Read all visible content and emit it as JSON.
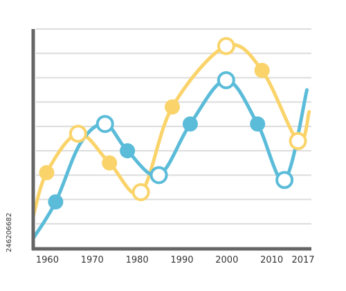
{
  "chart_data": {
    "type": "line",
    "title": "",
    "xlabel": "",
    "ylabel": "",
    "x": [
      1960,
      1970,
      1980,
      1990,
      2000,
      2010,
      2017
    ],
    "xlim": [
      1957,
      2019
    ],
    "ylim": [
      0,
      9
    ],
    "smooth": true,
    "grid": true,
    "series": [
      {
        "color": "#5bbcd9",
        "points": [
          {
            "x": 1957,
            "y": 0.4
          },
          {
            "x": 1962,
            "y": 1.9,
            "marker": "filled"
          },
          {
            "x": 1967.5,
            "y": 4.3
          },
          {
            "x": 1973,
            "y": 5.1,
            "marker": "hollow"
          },
          {
            "x": 1978,
            "y": 4.0,
            "marker": "filled"
          },
          {
            "x": 1985,
            "y": 3.0,
            "marker": "hollow"
          },
          {
            "x": 1992,
            "y": 5.1,
            "marker": "filled"
          },
          {
            "x": 2000,
            "y": 6.9,
            "marker": "hollow"
          },
          {
            "x": 2007,
            "y": 5.1,
            "marker": "filled"
          },
          {
            "x": 2013,
            "y": 2.8,
            "marker": "hollow"
          },
          {
            "x": 2018,
            "y": 6.5
          }
        ]
      },
      {
        "color": "#fad46a",
        "points": [
          {
            "x": 1957,
            "y": 1.3
          },
          {
            "x": 1960,
            "y": 3.1,
            "marker": "filled"
          },
          {
            "x": 1967,
            "y": 4.7,
            "marker": "hollow"
          },
          {
            "x": 1974,
            "y": 3.5,
            "marker": "filled"
          },
          {
            "x": 1981,
            "y": 2.3,
            "marker": "hollow"
          },
          {
            "x": 1988,
            "y": 5.8,
            "marker": "filled"
          },
          {
            "x": 2000,
            "y": 8.3,
            "marker": "hollow"
          },
          {
            "x": 2008,
            "y": 7.3,
            "marker": "filled"
          },
          {
            "x": 2016,
            "y": 4.4,
            "marker": "hollow"
          },
          {
            "x": 2018.5,
            "y": 5.6
          }
        ]
      }
    ],
    "gridlines_y": [
      1,
      2,
      3,
      4,
      5,
      6,
      7,
      8,
      9
    ]
  },
  "axis_color": "#666666",
  "grid_color": "#dcdcdc",
  "side_text": "246206682"
}
